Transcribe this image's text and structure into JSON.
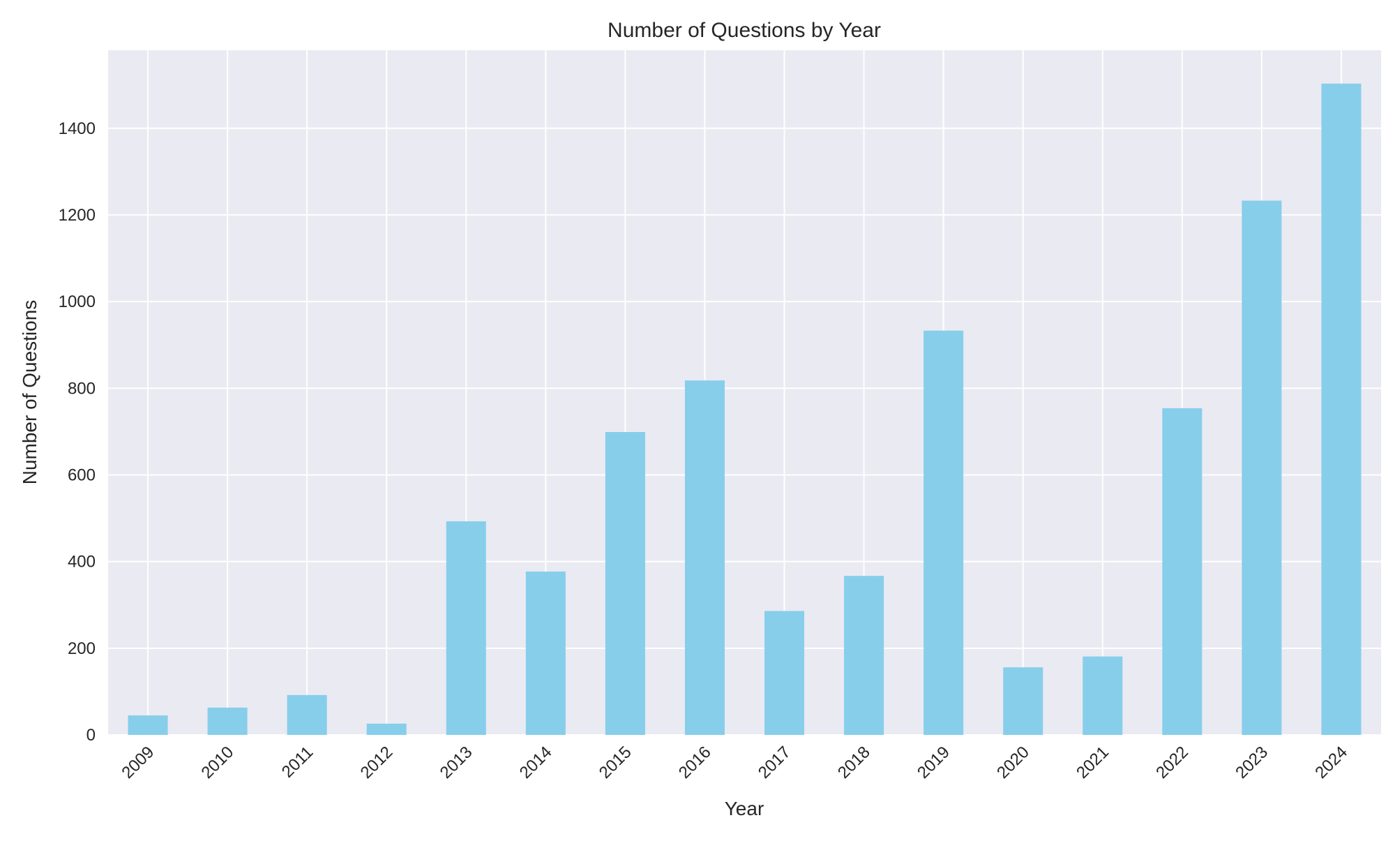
{
  "chart_data": {
    "type": "bar",
    "title": "Number of Questions by Year",
    "xlabel": "Year",
    "ylabel": "Number of Questions",
    "categories": [
      "2009",
      "2010",
      "2011",
      "2012",
      "2013",
      "2014",
      "2015",
      "2016",
      "2017",
      "2018",
      "2019",
      "2020",
      "2021",
      "2022",
      "2023",
      "2024"
    ],
    "values": [
      45,
      63,
      92,
      26,
      493,
      377,
      699,
      818,
      286,
      367,
      933,
      156,
      181,
      754,
      1233,
      1503
    ],
    "ylim": [
      0,
      1580
    ],
    "yticks": [
      0,
      200,
      400,
      600,
      800,
      1000,
      1200,
      1400
    ],
    "grid": true,
    "legend": "none",
    "colors": {
      "bar": "#87CEEB",
      "plot_background": "#EAEAF2",
      "grid": "#FFFFFF",
      "text": "#262626"
    }
  }
}
